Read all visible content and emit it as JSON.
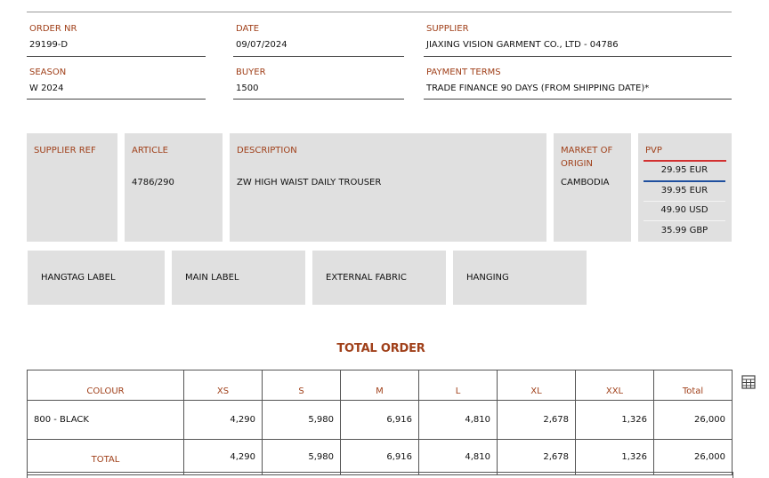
{
  "header": {
    "order_nr": {
      "label": "ORDER NR",
      "value": "29199-D"
    },
    "date": {
      "label": "DATE",
      "value": "09/07/2024"
    },
    "supplier": {
      "label": "SUPPLIER",
      "value": "JIAXING VISION GARMENT CO., LTD - 04786"
    },
    "season": {
      "label": "SEASON",
      "value": "W 2024"
    },
    "buyer": {
      "label": "BUYER",
      "value": "1500"
    },
    "payment_terms": {
      "label": "PAYMENT TERMS",
      "value": "TRADE FINANCE 90 DAYS (FROM SHIPPING DATE)*"
    }
  },
  "article_info": {
    "supplier_ref": {
      "label": "SUPPLIER REF",
      "value": ""
    },
    "article": {
      "label": "ARTICLE",
      "value": "4786/290"
    },
    "description": {
      "label": "DESCRIPTION",
      "value": "ZW HIGH WAIST DAILY TROUSER"
    },
    "market_of_origin": {
      "label": "MARKET OF ORIGIN",
      "value": "CAMBODIA"
    },
    "pvp": {
      "label": "PVP",
      "prices": [
        "29.95 EUR",
        "39.95 EUR",
        "49.90 USD",
        "35.99 GBP"
      ],
      "accent_colors": [
        "#d23030",
        "#1f4f9e"
      ]
    }
  },
  "labels": [
    "HANGTAG LABEL",
    "MAIN LABEL",
    "EXTERNAL FABRIC",
    "HANGING"
  ],
  "total_order": {
    "title": "TOTAL ORDER",
    "columns": [
      "COLOUR",
      "XS",
      "S",
      "M",
      "L",
      "XL",
      "XXL",
      "Total"
    ],
    "rows": [
      {
        "colour": "800 - BLACK",
        "values": [
          "4,290",
          "5,980",
          "6,916",
          "4,810",
          "2,678",
          "1,326",
          "26,000"
        ]
      }
    ],
    "total": {
      "label": "TOTAL",
      "values": [
        "4,290",
        "5,980",
        "6,916",
        "4,810",
        "2,678",
        "1,326",
        "26,000"
      ]
    }
  },
  "icons": {
    "table_settings": "grid-table-icon"
  },
  "colors": {
    "label_accent": "#a0401a",
    "panel_bg": "#e0e0e0"
  }
}
